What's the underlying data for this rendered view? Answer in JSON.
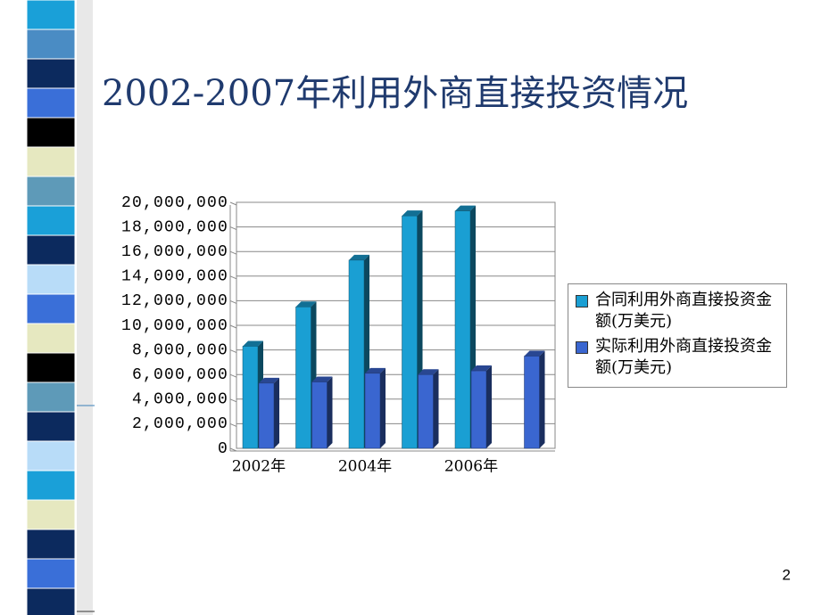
{
  "slide": {
    "title": "2002-2007年利用外商直接投资情况",
    "page_number": "2"
  },
  "chart_data": {
    "type": "bar3d",
    "categories": [
      "2002年",
      null,
      "2004年",
      null,
      "2006年",
      null
    ],
    "series": [
      {
        "name": "合同利用外商直接投资金额(万美元)",
        "color": "#1a9fd3",
        "values": [
          8300000,
          11500000,
          15300000,
          18900000,
          19300000,
          null
        ]
      },
      {
        "name": "实际利用外商直接投资金额(万美元)",
        "color": "#3a66d0",
        "values": [
          5300000,
          5400000,
          6100000,
          6000000,
          6300000,
          7500000
        ]
      }
    ],
    "ylim": [
      0,
      20000000
    ],
    "yticks": [
      0,
      {
        "value": 2000000,
        "label": "2,000,000"
      },
      {
        "value": 4000000,
        "label": "4,000,000"
      },
      {
        "value": 6000000,
        "label": "6,000,000"
      },
      {
        "value": 8000000,
        "label": "8,000,000"
      },
      {
        "value": 10000000,
        "label": "10,000,000"
      },
      {
        "value": 12000000,
        "label": "12,000,000"
      },
      {
        "value": 14000000,
        "label": "14,000,000"
      },
      {
        "value": 16000000,
        "label": "16,000,000"
      },
      {
        "value": 18000000,
        "label": "18,000,000"
      },
      {
        "value": 20000000,
        "label": "20,000,000"
      }
    ],
    "grid": true,
    "legend": "right"
  }
}
